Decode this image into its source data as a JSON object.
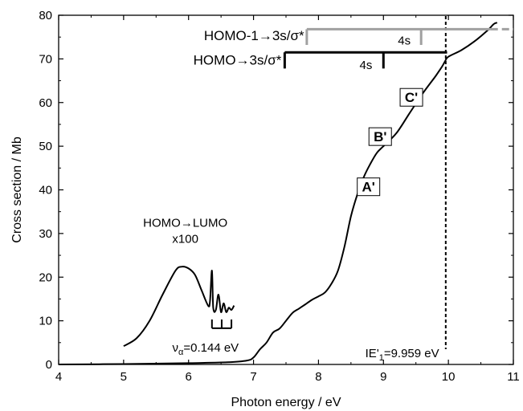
{
  "chart_data": {
    "type": "line",
    "xlabel": "Photon energy / eV",
    "ylabel": "Cross section / Mb",
    "xlim": [
      4,
      11
    ],
    "ylim": [
      0,
      80
    ],
    "xticks": [
      "4",
      "5",
      "6",
      "7",
      "8",
      "9",
      "10",
      "11"
    ],
    "yticks": [
      "0",
      "10",
      "20",
      "30",
      "40",
      "50",
      "60",
      "70",
      "80"
    ],
    "grid": false,
    "series": [
      {
        "x": [
          4.0,
          5.0,
          6.0,
          6.6,
          6.9,
          7.0,
          7.1,
          7.2,
          7.3,
          7.4,
          7.5,
          7.6,
          7.7,
          7.8,
          7.9,
          8.0,
          8.1,
          8.2,
          8.3,
          8.4,
          8.5,
          8.6,
          8.7,
          8.8,
          8.9,
          9.0,
          9.2,
          9.4,
          9.6,
          9.8,
          9.9,
          9.95,
          10.0,
          10.2,
          10.4,
          10.6,
          10.7,
          10.75
        ],
        "y": [
          0.0,
          0.1,
          0.3,
          0.5,
          0.9,
          1.6,
          3.5,
          5.0,
          7.3,
          8.2,
          10.0,
          11.8,
          12.8,
          13.8,
          14.8,
          15.6,
          16.5,
          18.5,
          21.5,
          27.0,
          34.0,
          39.0,
          43.0,
          46.0,
          48.5,
          50.0,
          53.0,
          57.5,
          62.0,
          66.0,
          68.2,
          69.5,
          70.5,
          72.0,
          74.0,
          76.5,
          78.0,
          78.3
        ]
      },
      {
        "x": [
          5.0,
          5.2,
          5.4,
          5.6,
          5.8,
          5.9,
          6.0,
          6.1,
          6.2,
          6.3,
          6.33,
          6.36,
          6.38,
          6.42,
          6.46,
          6.5,
          6.54,
          6.58,
          6.62,
          6.66,
          6.7
        ],
        "y": [
          4.2,
          6.0,
          10.0,
          16.0,
          21.5,
          22.4,
          22.0,
          20.5,
          17.0,
          13.5,
          14.5,
          21.5,
          13.0,
          12.5,
          16.0,
          12.0,
          14.0,
          12.0,
          13.0,
          12.5,
          13.5
        ]
      }
    ],
    "annotations": {
      "homo_lumo_line1": "HOMO→LUMO",
      "homo_lumo_line2": "x100",
      "nu_symbol": "ν",
      "nu_subscript": "α",
      "nu_value": "=0.144 eV",
      "ie_label": "IE'",
      "ie_subscript": "1",
      "ie_value": "=9.959 eV",
      "ie_x": 9.959,
      "homo1_label": "HOMO-1→3s/σ*",
      "homo1_4s": "4s",
      "homo_label": "HOMO→3s/σ*",
      "homo_4s": "4s",
      "A": "A'",
      "B": "B'",
      "C": "C'",
      "colors": {
        "curve": "#000000",
        "homo1_ladder": "#a0a0a0",
        "homo_ladder": "#000000"
      }
    }
  }
}
